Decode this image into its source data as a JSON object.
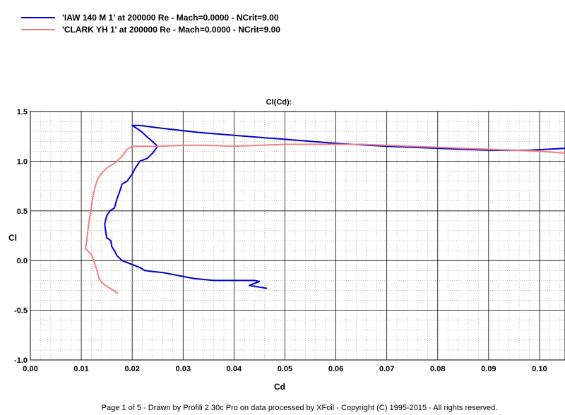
{
  "chart_data": {
    "type": "line",
    "title": "Cl(Cd):",
    "xlabel": "Cd",
    "ylabel": "Cl",
    "xlim": [
      0.0,
      0.105
    ],
    "ylim": [
      -1.0,
      1.5
    ],
    "x_ticks": [
      "0.00",
      "0.01",
      "0.02",
      "0.03",
      "0.04",
      "0.05",
      "0.06",
      "0.07",
      "0.08",
      "0.09",
      "0.10"
    ],
    "y_ticks": [
      "1.5",
      "1.0",
      "0.5",
      "0.0",
      "-0.5",
      "-1.0"
    ],
    "grid": true,
    "legend_position": "top-left",
    "series": [
      {
        "name": "'IAW 140 M 1' at 200000 Re - Mach=0.0000 - NCrit=9.00",
        "color": "#0000cc",
        "points": [
          [
            0.0465,
            -0.28
          ],
          [
            0.043,
            -0.25
          ],
          [
            0.045,
            -0.21
          ],
          [
            0.044,
            -0.2
          ],
          [
            0.04,
            -0.2
          ],
          [
            0.036,
            -0.2
          ],
          [
            0.032,
            -0.18
          ],
          [
            0.029,
            -0.15
          ],
          [
            0.026,
            -0.12
          ],
          [
            0.024,
            -0.11
          ],
          [
            0.0225,
            -0.1
          ],
          [
            0.0215,
            -0.07
          ],
          [
            0.0205,
            -0.05
          ],
          [
            0.0195,
            -0.03
          ],
          [
            0.018,
            0.0
          ],
          [
            0.017,
            0.05
          ],
          [
            0.0165,
            0.1
          ],
          [
            0.016,
            0.14
          ],
          [
            0.0158,
            0.2
          ],
          [
            0.015,
            0.23
          ],
          [
            0.0148,
            0.29
          ],
          [
            0.0146,
            0.37
          ],
          [
            0.015,
            0.45
          ],
          [
            0.0156,
            0.5
          ],
          [
            0.0165,
            0.53
          ],
          [
            0.017,
            0.62
          ],
          [
            0.0175,
            0.69
          ],
          [
            0.018,
            0.77
          ],
          [
            0.019,
            0.8
          ],
          [
            0.02,
            0.87
          ],
          [
            0.0206,
            0.93
          ],
          [
            0.0215,
            1.0
          ],
          [
            0.023,
            1.03
          ],
          [
            0.024,
            1.08
          ],
          [
            0.025,
            1.15
          ],
          [
            0.0244,
            1.18
          ],
          [
            0.0235,
            1.22
          ],
          [
            0.0228,
            1.25
          ],
          [
            0.022,
            1.29
          ],
          [
            0.0212,
            1.32
          ],
          [
            0.02,
            1.36
          ],
          [
            0.0215,
            1.36
          ],
          [
            0.026,
            1.33
          ],
          [
            0.033,
            1.29
          ],
          [
            0.04,
            1.26
          ],
          [
            0.05,
            1.22
          ],
          [
            0.06,
            1.18
          ],
          [
            0.07,
            1.15
          ],
          [
            0.08,
            1.13
          ],
          [
            0.09,
            1.11
          ],
          [
            0.098,
            1.11
          ],
          [
            0.105,
            1.13
          ]
        ]
      },
      {
        "name": "'CLARK YH 1' at 200000 Re - Mach=0.0000 - NCrit=9.00",
        "color": "#f08080",
        "points": [
          [
            0.0172,
            -0.33
          ],
          [
            0.016,
            -0.29
          ],
          [
            0.015,
            -0.26
          ],
          [
            0.014,
            -0.22
          ],
          [
            0.0135,
            -0.18
          ],
          [
            0.0131,
            -0.1
          ],
          [
            0.0126,
            -0.02
          ],
          [
            0.012,
            0.06
          ],
          [
            0.0108,
            0.12
          ],
          [
            0.011,
            0.17
          ],
          [
            0.0112,
            0.25
          ],
          [
            0.0114,
            0.35
          ],
          [
            0.0117,
            0.45
          ],
          [
            0.012,
            0.55
          ],
          [
            0.0123,
            0.65
          ],
          [
            0.0127,
            0.74
          ],
          [
            0.0132,
            0.82
          ],
          [
            0.014,
            0.88
          ],
          [
            0.015,
            0.93
          ],
          [
            0.0165,
            0.98
          ],
          [
            0.018,
            1.05
          ],
          [
            0.019,
            1.12
          ],
          [
            0.02,
            1.15
          ],
          [
            0.025,
            1.15
          ],
          [
            0.03,
            1.16
          ],
          [
            0.035,
            1.16
          ],
          [
            0.04,
            1.15
          ],
          [
            0.045,
            1.16
          ],
          [
            0.05,
            1.17
          ],
          [
            0.055,
            1.17
          ],
          [
            0.06,
            1.17
          ],
          [
            0.065,
            1.17
          ],
          [
            0.07,
            1.16
          ],
          [
            0.075,
            1.15
          ],
          [
            0.08,
            1.14
          ],
          [
            0.085,
            1.13
          ],
          [
            0.09,
            1.12
          ],
          [
            0.095,
            1.11
          ],
          [
            0.1,
            1.1
          ],
          [
            0.105,
            1.08
          ]
        ]
      }
    ]
  },
  "footer": "Page 1 of 5    -    Drawn by Profili 2.30c Pro on data processed by  XFoil - Copyright (C) 1995-2015 - All rights reserved."
}
